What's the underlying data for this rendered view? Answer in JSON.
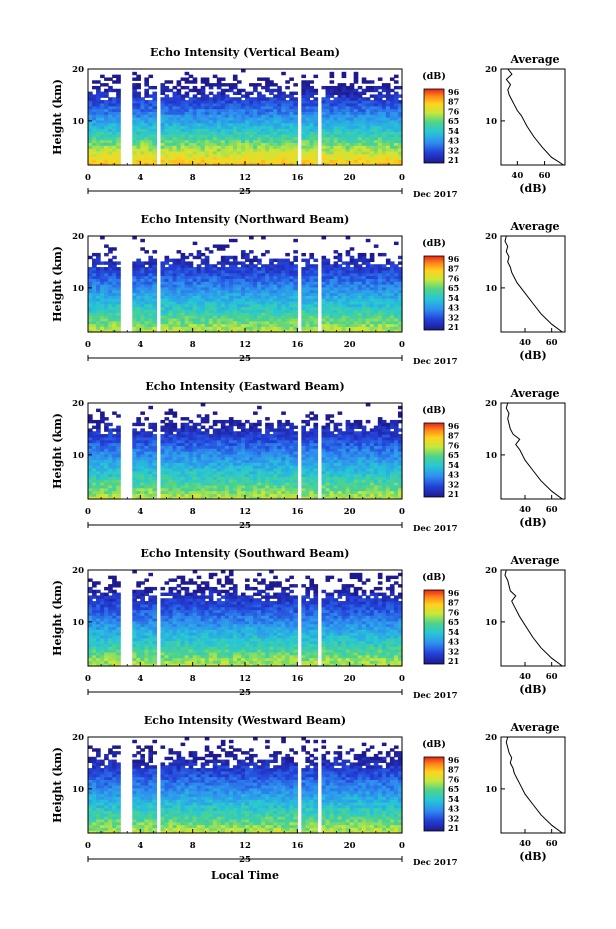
{
  "figure": {
    "x_axis_label": "Local Time",
    "date_label": "25",
    "month_year_label": "Dec 2017",
    "y_axis_label": "Height (km)",
    "average_title": "Average",
    "average_xlabel": "(dB)",
    "colorbar_unit": "(dB)"
  },
  "chart_data": [
    {
      "type": "heatmap",
      "title": "Echo Intensity (Vertical Beam)",
      "ylabel": "Height (km)",
      "x_ticks": [
        "0",
        "4",
        "8",
        "12",
        "16",
        "20",
        "0"
      ],
      "xlim": [
        0,
        24
      ],
      "y_ticks": [
        "10",
        "20"
      ],
      "ylim": [
        1.5,
        20
      ],
      "colorbar_ticks": [
        "96",
        "87",
        "76",
        "65",
        "54",
        "43",
        "32",
        "21"
      ],
      "data_gaps_hours": [
        [
          2.5,
          3.5
        ],
        [
          5.3,
          5.6
        ],
        [
          15.9,
          16.3
        ],
        [
          17.5,
          17.8
        ]
      ],
      "approx_top_of_echo_km": 19.5,
      "surface_intensity_db": 80,
      "average_profile": {
        "title": "Average",
        "xlabel": "(dB)",
        "x_ticks": [
          "40",
          "60"
        ],
        "xlim": [
          28,
          75
        ],
        "y_ticks": [
          "10",
          "20"
        ],
        "height_km": [
          1.5,
          3,
          5,
          7,
          9,
          11,
          12,
          13,
          14,
          15,
          16,
          17,
          18,
          19,
          20
        ],
        "db": [
          74,
          65,
          58,
          52,
          47,
          43,
          40,
          38,
          36,
          34,
          33,
          35,
          32,
          36,
          33
        ]
      }
    },
    {
      "type": "heatmap",
      "title": "Echo Intensity (Northward Beam)",
      "ylabel": "Height (km)",
      "x_ticks": [
        "0",
        "4",
        "8",
        "12",
        "16",
        "20",
        "0"
      ],
      "xlim": [
        0,
        24
      ],
      "y_ticks": [
        "10",
        "20"
      ],
      "ylim": [
        1.5,
        20
      ],
      "colorbar_ticks": [
        "96",
        "87",
        "76",
        "65",
        "54",
        "43",
        "32",
        "21"
      ],
      "data_gaps_hours": [
        [
          2.5,
          3.5
        ],
        [
          5.3,
          5.6
        ],
        [
          15.9,
          16.3
        ],
        [
          17.5,
          17.8
        ]
      ],
      "approx_top_of_echo_km": 17.5,
      "surface_intensity_db": 70,
      "average_profile": {
        "title": "Average",
        "xlabel": "(dB)",
        "x_ticks": [
          "40",
          "60"
        ],
        "xlim": [
          22,
          70
        ],
        "y_ticks": [
          "10",
          "20"
        ],
        "height_km": [
          1.5,
          3,
          5,
          7,
          9,
          11,
          12,
          13,
          14,
          15,
          16,
          17,
          18,
          19,
          20
        ],
        "db": [
          68,
          60,
          52,
          46,
          40,
          34,
          32,
          30,
          29,
          27,
          28,
          26,
          27,
          25,
          26
        ]
      }
    },
    {
      "type": "heatmap",
      "title": "Echo Intensity (Eastward Beam)",
      "ylabel": "Height (km)",
      "x_ticks": [
        "0",
        "4",
        "8",
        "12",
        "16",
        "20",
        "0"
      ],
      "xlim": [
        0,
        24
      ],
      "y_ticks": [
        "10",
        "20"
      ],
      "ylim": [
        1.5,
        20
      ],
      "colorbar_ticks": [
        "96",
        "87",
        "76",
        "65",
        "54",
        "43",
        "32",
        "21"
      ],
      "data_gaps_hours": [
        [
          2.5,
          3.5
        ],
        [
          5.3,
          5.6
        ],
        [
          15.9,
          16.3
        ],
        [
          17.5,
          17.8
        ]
      ],
      "approx_top_of_echo_km": 18.5,
      "surface_intensity_db": 70,
      "average_profile": {
        "title": "Average",
        "xlabel": "(dB)",
        "x_ticks": [
          "40",
          "60"
        ],
        "xlim": [
          22,
          70
        ],
        "y_ticks": [
          "10",
          "20"
        ],
        "height_km": [
          1.5,
          3,
          5,
          7,
          9,
          11,
          12,
          13,
          14,
          15,
          16,
          17,
          18,
          19,
          20
        ],
        "db": [
          68,
          60,
          52,
          46,
          40,
          36,
          33,
          36,
          31,
          29,
          28,
          27,
          28,
          26,
          27
        ]
      }
    },
    {
      "type": "heatmap",
      "title": "Echo Intensity (Southward Beam)",
      "ylabel": "Height (km)",
      "x_ticks": [
        "0",
        "4",
        "8",
        "12",
        "16",
        "20",
        "0"
      ],
      "xlim": [
        0,
        24
      ],
      "y_ticks": [
        "10",
        "20"
      ],
      "ylim": [
        1.5,
        20
      ],
      "colorbar_ticks": [
        "96",
        "87",
        "76",
        "65",
        "54",
        "43",
        "32",
        "21"
      ],
      "data_gaps_hours": [
        [
          2.5,
          3.5
        ],
        [
          5.3,
          5.6
        ],
        [
          15.9,
          16.3
        ],
        [
          17.5,
          17.8
        ]
      ],
      "approx_top_of_echo_km": 19.5,
      "surface_intensity_db": 70,
      "average_profile": {
        "title": "Average",
        "xlabel": "(dB)",
        "x_ticks": [
          "40",
          "60"
        ],
        "xlim": [
          22,
          70
        ],
        "y_ticks": [
          "10",
          "20"
        ],
        "height_km": [
          1.5,
          3,
          5,
          7,
          9,
          11,
          12,
          13,
          14,
          15,
          16,
          17,
          18,
          19,
          20
        ],
        "db": [
          68,
          60,
          52,
          46,
          41,
          36,
          34,
          32,
          30,
          33,
          29,
          28,
          27,
          25,
          26
        ]
      }
    },
    {
      "type": "heatmap",
      "title": "Echo Intensity (Westward Beam)",
      "ylabel": "Height (km)",
      "x_ticks": [
        "0",
        "4",
        "8",
        "12",
        "16",
        "20",
        "0"
      ],
      "xlim": [
        0,
        24
      ],
      "y_ticks": [
        "10",
        "20"
      ],
      "ylim": [
        1.5,
        20
      ],
      "colorbar_ticks": [
        "96",
        "87",
        "76",
        "65",
        "54",
        "43",
        "32",
        "21"
      ],
      "data_gaps_hours": [
        [
          2.5,
          3.5
        ],
        [
          5.3,
          5.6
        ],
        [
          15.9,
          16.3
        ],
        [
          17.5,
          17.8
        ]
      ],
      "approx_top_of_echo_km": 18.5,
      "surface_intensity_db": 70,
      "average_profile": {
        "title": "Average",
        "xlabel": "(dB)",
        "x_ticks": [
          "40",
          "60"
        ],
        "xlim": [
          22,
          70
        ],
        "y_ticks": [
          "10",
          "20"
        ],
        "height_km": [
          1.5,
          3,
          5,
          7,
          9,
          11,
          12,
          13,
          14,
          15,
          16,
          17,
          18,
          19,
          20
        ],
        "db": [
          68,
          60,
          52,
          46,
          40,
          36,
          34,
          32,
          31,
          29,
          30,
          28,
          27,
          26,
          27
        ]
      }
    }
  ]
}
